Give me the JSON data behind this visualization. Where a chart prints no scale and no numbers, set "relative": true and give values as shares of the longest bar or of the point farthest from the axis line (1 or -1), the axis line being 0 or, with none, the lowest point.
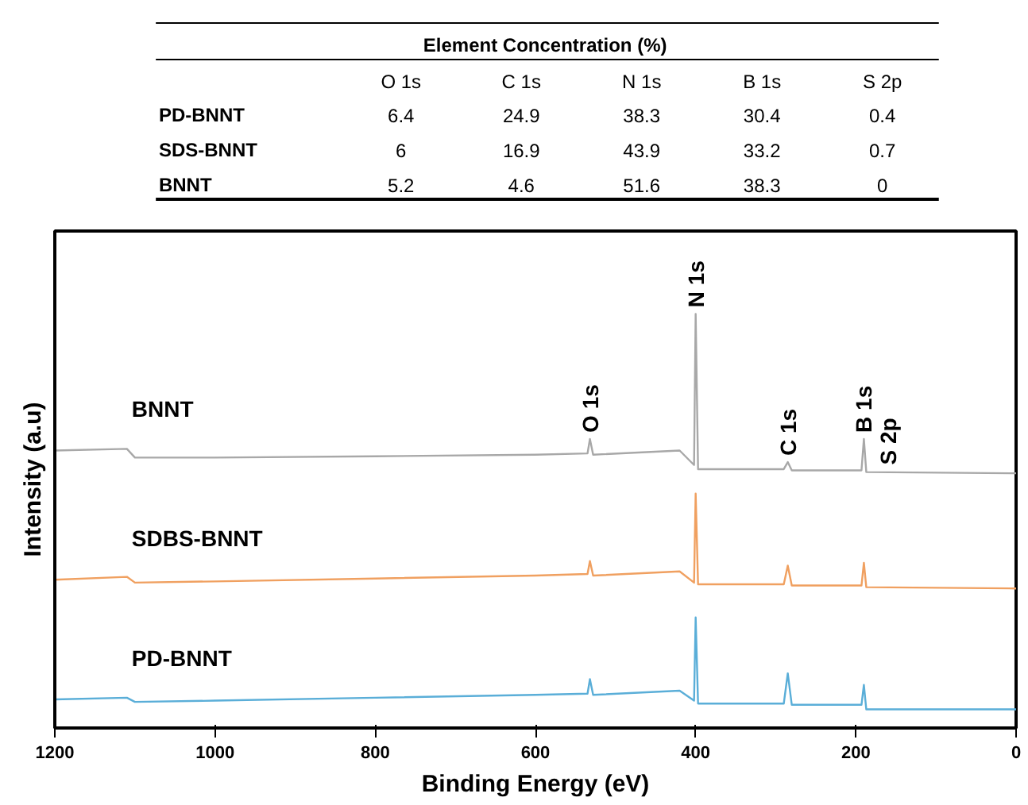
{
  "chart_data": [
    {
      "type": "heatmap",
      "title": "Element Concentration (%)",
      "categories": [
        "O 1s",
        "C 1s",
        "N 1s",
        "B 1s",
        "S 2p"
      ],
      "y_categories": [
        "PD-BNNT",
        "SDS-BNNT",
        "BNNT"
      ],
      "data_labels": true,
      "cells": [
        [
          6.4,
          24.9,
          38.3,
          30.4,
          0.4
        ],
        [
          6,
          16.9,
          43.9,
          33.2,
          0.7
        ],
        [
          5.2,
          4.6,
          51.6,
          38.3,
          0
        ]
      ]
    },
    {
      "type": "line",
      "relative": true,
      "xlabel": "Binding Energy (eV)",
      "ylabel": "Intensity (a.u)",
      "xlim": [
        1200,
        0
      ],
      "xticks": [
        1200,
        1000,
        800,
        600,
        400,
        200,
        0
      ],
      "grid": false,
      "tick_labels": "x",
      "x": [
        1200,
        1110,
        1100,
        1000,
        800,
        600,
        535,
        532,
        528,
        420,
        402,
        400,
        397,
        290,
        285,
        280,
        193,
        190,
        187,
        0
      ],
      "series": [
        {
          "name": "BNNT",
          "color": "#a8a8a8",
          "values": [
            0.67,
            0.674,
            0.653,
            0.653,
            0.656,
            0.66,
            0.663,
            0.698,
            0.66,
            0.67,
            0.635,
            1,
            0.625,
            0.625,
            0.642,
            0.622,
            0.622,
            0.698,
            0.618,
            0.615
          ]
        },
        {
          "name": "SDBS-BNNT",
          "color": "#f0a060",
          "values": [
            0.358,
            0.365,
            0.351,
            0.354,
            0.361,
            0.368,
            0.372,
            0.403,
            0.368,
            0.378,
            0.351,
            0.566,
            0.347,
            0.347,
            0.392,
            0.344,
            0.344,
            0.399,
            0.34,
            0.337
          ]
        },
        {
          "name": "PD-BNNT",
          "color": "#5aaed8",
          "values": [
            0.069,
            0.073,
            0.063,
            0.066,
            0.073,
            0.08,
            0.083,
            0.118,
            0.08,
            0.09,
            0.066,
            0.267,
            0.059,
            0.059,
            0.132,
            0.056,
            0.056,
            0.104,
            0.045,
            0.045
          ]
        }
      ],
      "annotations": [
        {
          "text": "O 1s",
          "x": 532,
          "y": 0.698
        },
        {
          "text": "N 1s",
          "x": 400,
          "y": 1
        },
        {
          "text": "C 1s",
          "x": 285,
          "y": 0.642
        },
        {
          "text": "B 1s",
          "x": 190,
          "y": 0.698
        },
        {
          "text": "S 2p",
          "x": 160,
          "y": 0.62
        }
      ]
    }
  ]
}
